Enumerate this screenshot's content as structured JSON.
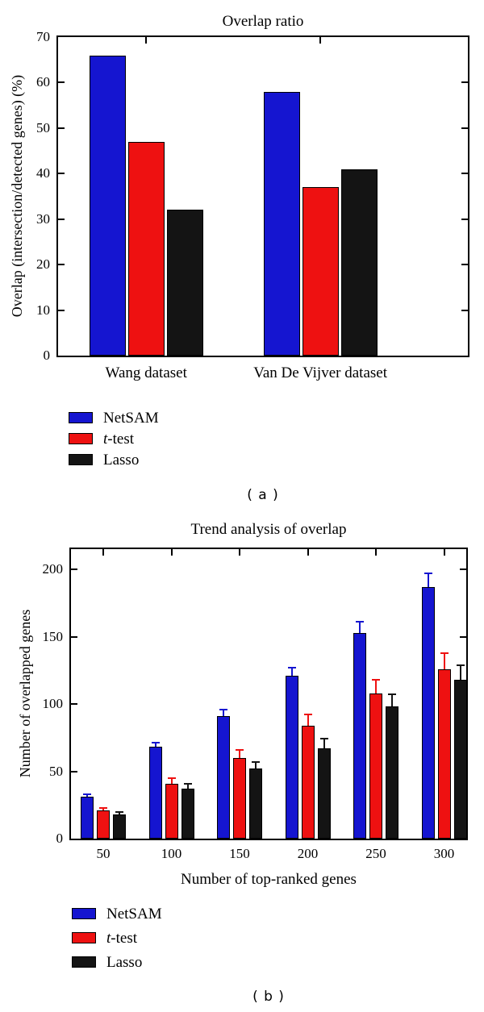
{
  "background": "#ffffff",
  "axis_color": "#000000",
  "series_colors": {
    "netsam": "#1515d0",
    "ttest": "#ee1111",
    "lasso": "#141414"
  },
  "chart_data": [
    {
      "id": "a",
      "type": "bar",
      "title": "Overlap ratio",
      "xlabel": "",
      "ylabel": "Overlap (intersection/detected genes) (%)",
      "categories": [
        "Wang dataset",
        "Van De Vijver dataset"
      ],
      "series": [
        {
          "name": "NetSAM",
          "color_key": "netsam",
          "values": [
            66,
            58
          ]
        },
        {
          "name": "t-test",
          "color_key": "ttest",
          "values": [
            47,
            37
          ]
        },
        {
          "name": "Lasso",
          "color_key": "lasso",
          "values": [
            32,
            41
          ]
        }
      ],
      "ylim": [
        0,
        70
      ],
      "yticks": [
        0,
        10,
        20,
        30,
        40,
        50,
        60,
        70
      ],
      "grid": false,
      "legend_position": "below-left",
      "legend": [
        {
          "color_key": "netsam",
          "label": "NetSAM"
        },
        {
          "color_key": "ttest",
          "label_italic": "t",
          "label_rest": "-test"
        },
        {
          "color_key": "lasso",
          "label": "Lasso"
        }
      ],
      "caption": "( a )"
    },
    {
      "id": "b",
      "type": "bar",
      "title": "Trend analysis of overlap",
      "xlabel": "Number of top-ranked genes",
      "ylabel": "Number of overlapped genes",
      "categories": [
        "50",
        "100",
        "150",
        "200",
        "250",
        "300"
      ],
      "series": [
        {
          "name": "NetSAM",
          "color_key": "netsam",
          "values": [
            31,
            68,
            91,
            121,
            153,
            187
          ],
          "errors": [
            2,
            3,
            5,
            6,
            8,
            10
          ]
        },
        {
          "name": "t-test",
          "color_key": "ttest",
          "values": [
            21,
            41,
            60,
            84,
            108,
            126
          ],
          "errors": [
            2,
            4,
            6,
            8,
            10,
            12
          ]
        },
        {
          "name": "Lasso",
          "color_key": "lasso",
          "values": [
            18,
            37,
            52,
            67,
            98,
            118
          ],
          "errors": [
            2,
            4,
            5,
            7,
            9,
            11
          ]
        }
      ],
      "ylim": [
        0,
        215
      ],
      "yticks": [
        0,
        50,
        100,
        150,
        200
      ],
      "grid": false,
      "legend_position": "below-left",
      "legend": [
        {
          "color_key": "netsam",
          "label": "NetSAM"
        },
        {
          "color_key": "ttest",
          "label_italic": "t",
          "label_rest": "-test"
        },
        {
          "color_key": "lasso",
          "label": "Lasso"
        }
      ],
      "caption": "( b )"
    }
  ]
}
